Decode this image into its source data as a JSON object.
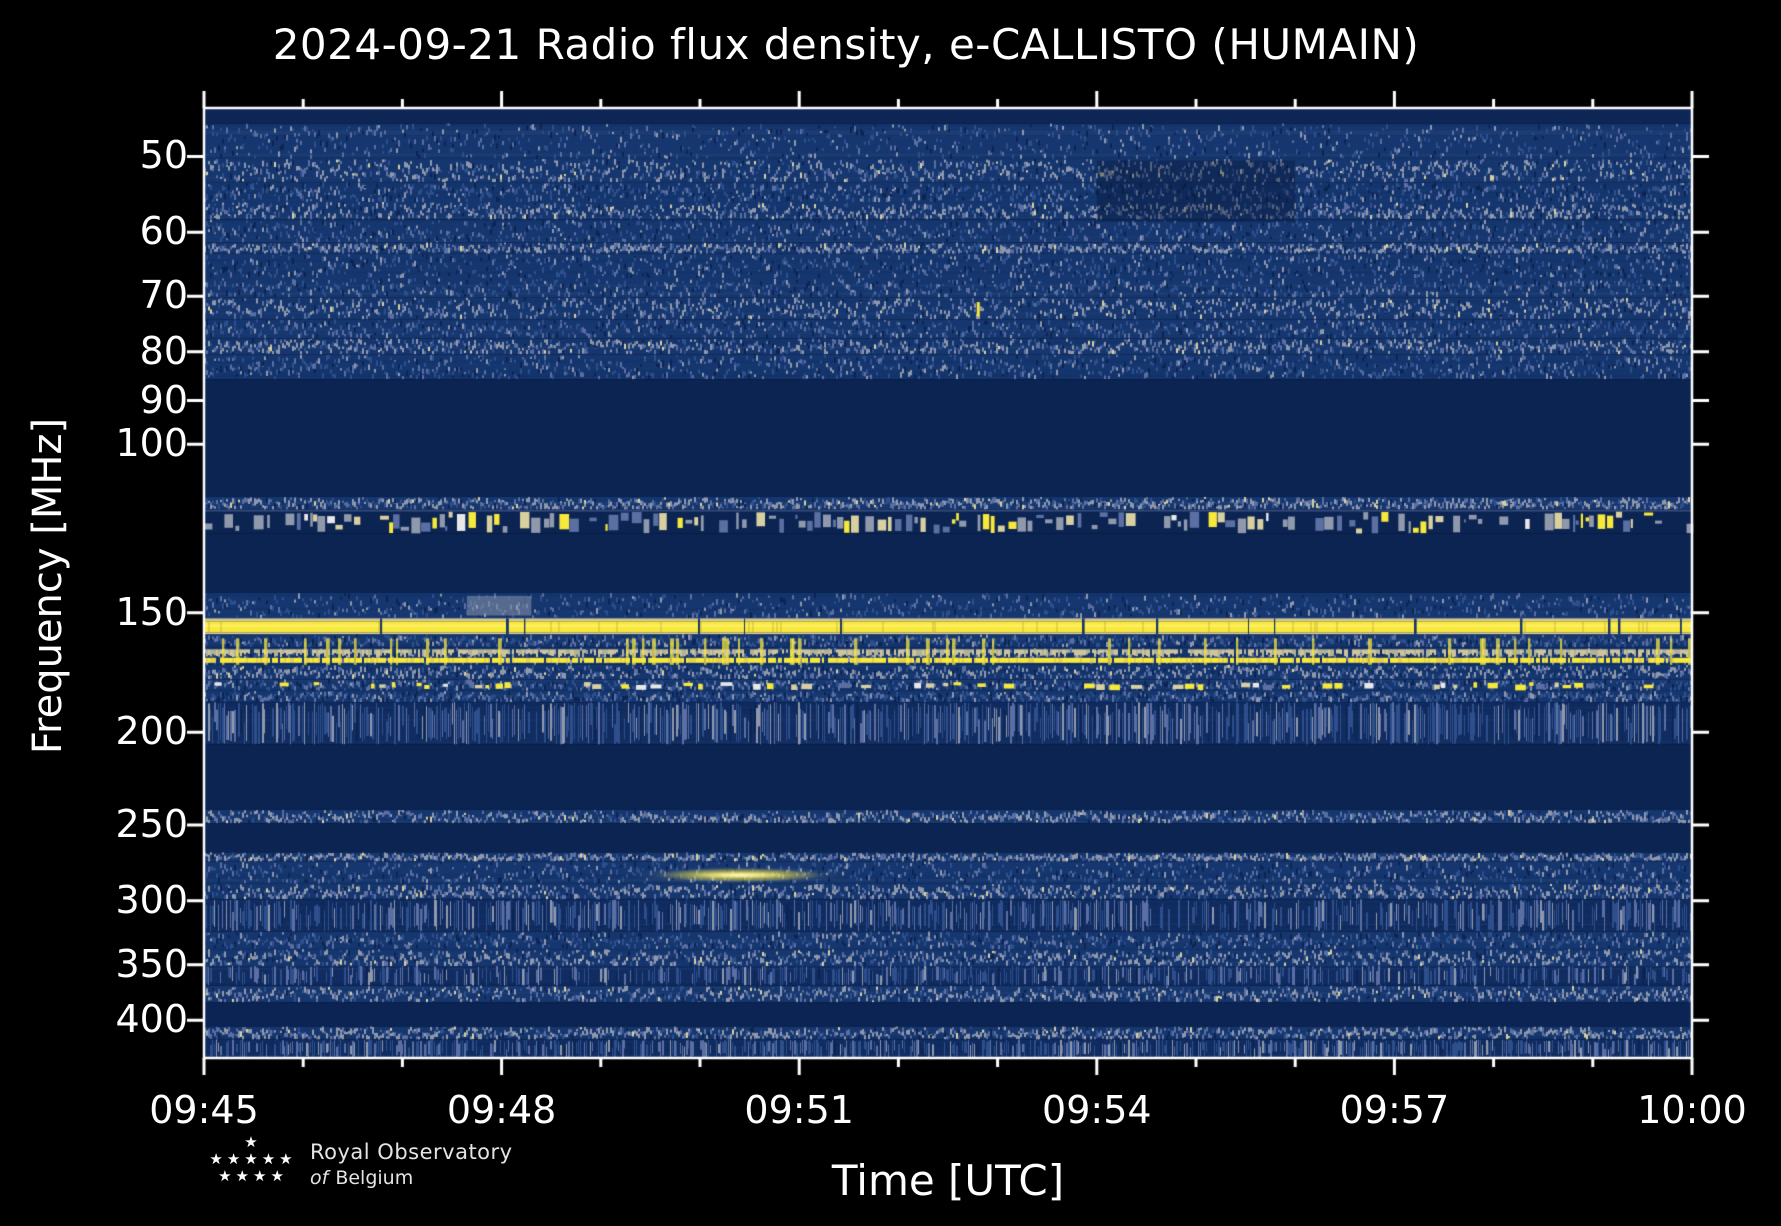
{
  "chart_data": {
    "type": "heatmap",
    "title": "2024-09-21 Radio flux density, e-CALLISTO (HUMAIN)",
    "xlabel": "Time [UTC]",
    "ylabel": "Frequency [MHz]",
    "network": "e-CALLISTO",
    "station": "HUMAIN",
    "date": "2024-09-21",
    "x_start": "09:45",
    "x_end": "10:00",
    "x_duration_minutes": 15,
    "x_ticks": [
      {
        "label": "09:45",
        "min": 0
      },
      {
        "label": "09:48",
        "min": 3
      },
      {
        "label": "09:51",
        "min": 6
      },
      {
        "label": "09:54",
        "min": 9
      },
      {
        "label": "09:57",
        "min": 12
      },
      {
        "label": "10:00",
        "min": 15
      }
    ],
    "x_minor_interval_minutes": 1,
    "y_scale": "log",
    "y_axis_inverted": true,
    "y_range_mhz": [
      44.5,
      438
    ],
    "y_ticks": [
      {
        "label": "50",
        "mhz": 50
      },
      {
        "label": "60",
        "mhz": 60
      },
      {
        "label": "70",
        "mhz": 70
      },
      {
        "label": "80",
        "mhz": 80
      },
      {
        "label": "90",
        "mhz": 90
      },
      {
        "label": "100",
        "mhz": 100
      },
      {
        "label": "150",
        "mhz": 150
      },
      {
        "label": "200",
        "mhz": 200
      },
      {
        "label": "250",
        "mhz": 250
      },
      {
        "label": "300",
        "mhz": 300
      },
      {
        "label": "350",
        "mhz": 350
      },
      {
        "label": "400",
        "mhz": 400
      }
    ],
    "grid": false,
    "legend": "none",
    "palette": {
      "deep": "#0b2452",
      "base": "#15366e",
      "mid": "#2d4f8c",
      "light": "#5b6fa3",
      "gray": "#9099ac",
      "pale_yellow": "#d9d0a0",
      "yellow": "#f7e83c",
      "bright": "#fff8c0",
      "white": "#e8e8e8",
      "axis": "#ffffff"
    },
    "bands": [
      {
        "f_lo": 44.5,
        "f_hi": 46.2,
        "style": "solid",
        "base": "#0d2656"
      },
      {
        "f_lo": 46.2,
        "f_hi": 50.3,
        "style": "noise",
        "density": 0.75
      },
      {
        "f_lo": 50.3,
        "f_hi": 53.2,
        "style": "noise-light",
        "density": 0.95
      },
      {
        "f_lo": 53.2,
        "f_hi": 55.8,
        "style": "noise",
        "density": 0.8
      },
      {
        "f_lo": 55.8,
        "f_hi": 58.2,
        "style": "noise-light",
        "density": 0.9
      },
      {
        "f_lo": 58.2,
        "f_hi": 61.5,
        "style": "noise",
        "density": 0.7
      },
      {
        "f_lo": 61.5,
        "f_hi": 63.2,
        "style": "noise-light",
        "density": 0.85
      },
      {
        "f_lo": 63.2,
        "f_hi": 67.0,
        "style": "noise",
        "density": 0.75
      },
      {
        "f_lo": 67.0,
        "f_hi": 70.2,
        "style": "noise",
        "density": 0.65
      },
      {
        "f_lo": 70.2,
        "f_hi": 74.0,
        "style": "noise-light",
        "density": 0.9
      },
      {
        "f_lo": 74.0,
        "f_hi": 77.5,
        "style": "noise",
        "density": 0.7
      },
      {
        "f_lo": 77.5,
        "f_hi": 80.5,
        "style": "noise-light",
        "density": 0.85
      },
      {
        "f_lo": 80.5,
        "f_hi": 85.5,
        "style": "noise",
        "density": 0.85
      },
      {
        "f_lo": 85.5,
        "f_hi": 113.5,
        "style": "solid",
        "base": "#0b2452"
      },
      {
        "f_lo": 113.5,
        "f_hi": 117.0,
        "style": "noise-light",
        "density": 0.9
      },
      {
        "f_lo": 117.0,
        "f_hi": 124.0,
        "style": "speckle",
        "density": 0.75
      },
      {
        "f_lo": 124.0,
        "f_hi": 143.0,
        "style": "solid",
        "base": "#0b2452"
      },
      {
        "f_lo": 143.0,
        "f_hi": 152.0,
        "style": "noise",
        "density": 0.65
      },
      {
        "f_lo": 152.0,
        "f_hi": 158.0,
        "style": "yellow-solid"
      },
      {
        "f_lo": 158.0,
        "f_hi": 163.0,
        "style": "noise",
        "density": 0.7
      },
      {
        "f_lo": 163.0,
        "f_hi": 170.0,
        "style": "yellow-broken"
      },
      {
        "f_lo": 170.0,
        "f_hi": 176.0,
        "style": "noise-light",
        "density": 0.8
      },
      {
        "f_lo": 176.0,
        "f_hi": 181.0,
        "style": "yellow-dashes"
      },
      {
        "f_lo": 181.0,
        "f_hi": 186.0,
        "style": "noise",
        "density": 0.7
      },
      {
        "f_lo": 186.0,
        "f_hi": 206.0,
        "style": "stripes",
        "density": 0.8
      },
      {
        "f_lo": 206.0,
        "f_hi": 241.0,
        "style": "solid",
        "base": "#0b2452"
      },
      {
        "f_lo": 241.0,
        "f_hi": 249.0,
        "style": "noise-light",
        "density": 0.8
      },
      {
        "f_lo": 249.0,
        "f_hi": 267.0,
        "style": "solid",
        "base": "#0b2452"
      },
      {
        "f_lo": 267.0,
        "f_hi": 273.0,
        "style": "noise-light",
        "density": 0.75
      },
      {
        "f_lo": 273.0,
        "f_hi": 288.0,
        "style": "noise",
        "density": 0.65
      },
      {
        "f_lo": 288.0,
        "f_hi": 299.0,
        "style": "noise-light",
        "density": 0.9
      },
      {
        "f_lo": 299.0,
        "f_hi": 323.0,
        "style": "stripes",
        "density": 0.7
      },
      {
        "f_lo": 323.0,
        "f_hi": 337.0,
        "style": "noise",
        "density": 0.75
      },
      {
        "f_lo": 337.0,
        "f_hi": 351.0,
        "style": "noise-light",
        "density": 0.85
      },
      {
        "f_lo": 351.0,
        "f_hi": 368.0,
        "style": "stripes",
        "density": 0.6
      },
      {
        "f_lo": 368.0,
        "f_hi": 383.0,
        "style": "noise-light",
        "density": 0.8
      },
      {
        "f_lo": 383.0,
        "f_hi": 406.0,
        "style": "solid",
        "base": "#0c2454"
      },
      {
        "f_lo": 406.0,
        "f_hi": 419.0,
        "style": "noise-light",
        "density": 0.85
      },
      {
        "f_lo": 419.0,
        "f_hi": 438.0,
        "style": "stripes",
        "density": 0.75
      }
    ],
    "events": [
      {
        "type": "burst-blob",
        "t_start_min": 4.55,
        "t_end_min": 6.25,
        "freq_mhz": 282,
        "desc": "bright elongated emission blob around 09:50 near 282 MHz"
      },
      {
        "type": "yellow-tick",
        "t_min": 7.8,
        "f_lo": 71,
        "f_hi": 73.5,
        "desc": "isolated narrow yellow spike ~09:52.8 near 72 MHz"
      },
      {
        "type": "dark-patch",
        "t_start_min": 9.0,
        "t_end_min": 11.0,
        "f_lo": 50.5,
        "f_hi": 58.5,
        "desc": "slightly darker rectangle 09:54-09:56 between 50 and 58 MHz"
      },
      {
        "type": "light-patch",
        "t_start_min": 2.65,
        "t_end_min": 3.3,
        "f_lo": 144,
        "f_hi": 151,
        "desc": "pale gray patch just before 09:48 near 147 MHz"
      }
    ]
  },
  "logo": {
    "org_line1": "Royal Observatory",
    "org_line2_prefix": "of",
    "org_line2": "Belgium",
    "stars_rows": [
      1,
      5,
      4
    ]
  }
}
